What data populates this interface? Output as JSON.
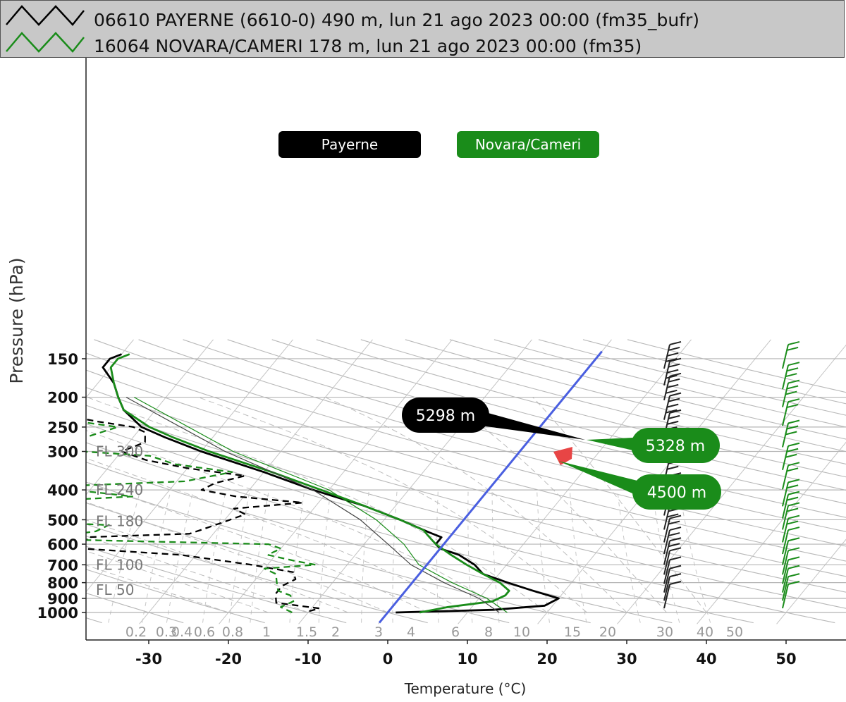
{
  "legend": {
    "row1": "06610 PAYERNE (6610-0) 490 m, lun 21 ago 2023 00:00 (fm35_bufr)",
    "row2": "16064 NOVARA/CAMERI 178 m, lun 21 ago 2023 00:00 (fm35)"
  },
  "colors": {
    "payerne": "#000000",
    "novara": "#1a8c1a",
    "freezing_line": "#4a5fe0",
    "highlight": "#e84545",
    "grid": "#bfbfbf"
  },
  "chart_data": {
    "type": "line",
    "subtype": "skew-T log-P diagram",
    "xlabel": "Temperature (°C)",
    "ylabel": "Pressure (hPa)",
    "xlim": [
      -38,
      57
    ],
    "ylim": [
      1080,
      140
    ],
    "x_ticks": [
      "-30",
      "-20",
      "-10",
      "0",
      "10",
      "20",
      "30",
      "40",
      "50"
    ],
    "y_ticks": [
      "150",
      "200",
      "250",
      "300",
      "400",
      "500",
      "600",
      "700",
      "800",
      "900",
      "1000"
    ],
    "y_tick_values": [
      150,
      200,
      250,
      300,
      400,
      500,
      600,
      700,
      800,
      900,
      1000
    ],
    "flight_levels": [
      {
        "label": "FL 300",
        "p": 300
      },
      {
        "label": "FL 240",
        "p": 400
      },
      {
        "label": "FL 180",
        "p": 505
      },
      {
        "label": "FL 100",
        "p": 700
      },
      {
        "label": "FL 50",
        "p": 845
      }
    ],
    "mixing_ratio_labels": [
      "0.2",
      "0.3",
      "0.4",
      "0.6",
      "0.8",
      "1",
      "1.5",
      "2",
      "3",
      "4",
      "6",
      "8",
      "10",
      "15",
      "20",
      "30",
      "40",
      "50"
    ],
    "station_labels": [
      "Payerne",
      "Novara/Cameri"
    ],
    "series": [
      {
        "name": "06610 PAYERNE temperature",
        "color": "#000000",
        "dash": "solid",
        "points": [
          [
            1000,
            1
          ],
          [
            980,
            13
          ],
          [
            950,
            19
          ],
          [
            900,
            20
          ],
          [
            850,
            16
          ],
          [
            800,
            12
          ],
          [
            750,
            8
          ],
          [
            700,
            6
          ],
          [
            650,
            3
          ],
          [
            620,
            0
          ],
          [
            600,
            -1
          ],
          [
            570,
            -1
          ],
          [
            550,
            -3
          ],
          [
            500,
            -8
          ],
          [
            450,
            -14
          ],
          [
            400,
            -22
          ],
          [
            350,
            -30
          ],
          [
            300,
            -40
          ],
          [
            270,
            -46
          ],
          [
            250,
            -50
          ],
          [
            220,
            -54
          ],
          [
            200,
            -56
          ],
          [
            180,
            -58
          ],
          [
            160,
            -61
          ],
          [
            150,
            -61
          ],
          [
            145,
            -60
          ]
        ]
      },
      {
        "name": "06610 PAYERNE dew point",
        "color": "#000000",
        "dash": "dashed",
        "points": [
          [
            990,
            -10
          ],
          [
            970,
            -9
          ],
          [
            930,
            -15
          ],
          [
            870,
            -16
          ],
          [
            820,
            -16
          ],
          [
            780,
            -15
          ],
          [
            740,
            -16
          ],
          [
            700,
            -22
          ],
          [
            650,
            -32
          ],
          [
            620,
            -45
          ],
          [
            595,
            -62
          ],
          [
            590,
            -62
          ],
          [
            580,
            -45
          ],
          [
            570,
            -46
          ],
          [
            555,
            -33
          ],
          [
            540,
            -32
          ],
          [
            510,
            -30
          ],
          [
            480,
            -28
          ],
          [
            460,
            -30
          ],
          [
            440,
            -22
          ],
          [
            420,
            -31
          ],
          [
            400,
            -36
          ],
          [
            380,
            -35
          ],
          [
            360,
            -32
          ],
          [
            340,
            -40
          ],
          [
            320,
            -46
          ],
          [
            300,
            -50
          ],
          [
            280,
            -48
          ],
          [
            260,
            -49
          ],
          [
            250,
            -51
          ],
          [
            240,
            -56
          ],
          [
            220,
            -65
          ],
          [
            200,
            -71
          ],
          [
            180,
            -76
          ],
          [
            160,
            -82
          ],
          [
            150,
            -84
          ],
          [
            145,
            -85
          ]
        ]
      },
      {
        "name": "16064 NOVARA/CAMERI temperature",
        "color": "#1a8c1a",
        "dash": "solid",
        "points": [
          [
            1000,
            4
          ],
          [
            960,
            7
          ],
          [
            920,
            12
          ],
          [
            880,
            13
          ],
          [
            850,
            13
          ],
          [
            800,
            11
          ],
          [
            750,
            8
          ],
          [
            700,
            5
          ],
          [
            650,
            2
          ],
          [
            600,
            -1
          ],
          [
            580,
            -2
          ],
          [
            560,
            -3
          ],
          [
            540,
            -4
          ],
          [
            500,
            -8
          ],
          [
            450,
            -14
          ],
          [
            400,
            -21
          ],
          [
            350,
            -29
          ],
          [
            300,
            -39
          ],
          [
            270,
            -45
          ],
          [
            250,
            -49
          ],
          [
            220,
            -54
          ],
          [
            200,
            -56
          ],
          [
            180,
            -58
          ],
          [
            160,
            -60
          ],
          [
            150,
            -60
          ],
          [
            145,
            -59
          ]
        ]
      },
      {
        "name": "16064 NOVARA/CAMERI dew point",
        "color": "#1a8c1a",
        "dash": "dashed",
        "points": [
          [
            1000,
            -12
          ],
          [
            960,
            -14
          ],
          [
            920,
            -13
          ],
          [
            880,
            -14
          ],
          [
            850,
            -16
          ],
          [
            800,
            -17
          ],
          [
            750,
            -18
          ],
          [
            720,
            -20
          ],
          [
            700,
            -14
          ],
          [
            680,
            -17
          ],
          [
            650,
            -21
          ],
          [
            620,
            -20
          ],
          [
            600,
            -22
          ],
          [
            580,
            -48
          ],
          [
            570,
            -64
          ],
          [
            560,
            -48
          ],
          [
            545,
            -45
          ],
          [
            520,
            -44
          ],
          [
            500,
            -61
          ],
          [
            480,
            -71
          ],
          [
            460,
            -74
          ],
          [
            440,
            -58
          ],
          [
            420,
            -44
          ],
          [
            400,
            -52
          ],
          [
            390,
            -55
          ],
          [
            375,
            -39
          ],
          [
            350,
            -34
          ],
          [
            330,
            -42
          ],
          [
            310,
            -46
          ],
          [
            300,
            -55
          ],
          [
            290,
            -57
          ],
          [
            270,
            -56
          ],
          [
            250,
            -53
          ],
          [
            230,
            -64
          ],
          [
            210,
            -74
          ],
          [
            200,
            -74
          ],
          [
            180,
            -76
          ],
          [
            160,
            -78
          ],
          [
            150,
            -79
          ],
          [
            145,
            -81
          ]
        ]
      }
    ],
    "freezing_level_line": {
      "points": [
        [
          1080,
          0
        ],
        [
          142,
          0
        ]
      ]
    },
    "annotations": [
      {
        "text": "5298 m",
        "station": "Payerne",
        "p": 545,
        "t": -5
      },
      {
        "text": "5328 m",
        "station": "Novara/Cameri",
        "p": 545,
        "t": -5
      },
      {
        "text": "4500 m",
        "station": "Novara/Cameri",
        "p": 590,
        "t": -3
      }
    ],
    "wind_barbs": {
      "payerne": [
        [
          150,
          45
        ],
        [
          170,
          50
        ],
        [
          190,
          45
        ],
        [
          220,
          35
        ],
        [
          250,
          35
        ],
        [
          300,
          30
        ],
        [
          350,
          30
        ],
        [
          400,
          30
        ],
        [
          450,
          30
        ],
        [
          500,
          25
        ],
        [
          550,
          20
        ],
        [
          600,
          15
        ],
        [
          650,
          15
        ],
        [
          700,
          10
        ],
        [
          750,
          10
        ],
        [
          800,
          5
        ],
        [
          850,
          5
        ],
        [
          900,
          5
        ]
      ],
      "novara": [
        [
          150,
          20
        ],
        [
          175,
          25
        ],
        [
          200,
          25
        ],
        [
          230,
          20
        ],
        [
          270,
          25
        ],
        [
          320,
          25
        ],
        [
          370,
          20
        ],
        [
          420,
          20
        ],
        [
          460,
          20
        ],
        [
          500,
          20
        ],
        [
          550,
          15
        ],
        [
          600,
          10
        ],
        [
          650,
          10
        ],
        [
          700,
          10
        ],
        [
          750,
          5
        ],
        [
          800,
          5
        ],
        [
          850,
          10
        ],
        [
          900,
          10
        ]
      ]
    },
    "grid": true,
    "legend_placement": "top"
  }
}
